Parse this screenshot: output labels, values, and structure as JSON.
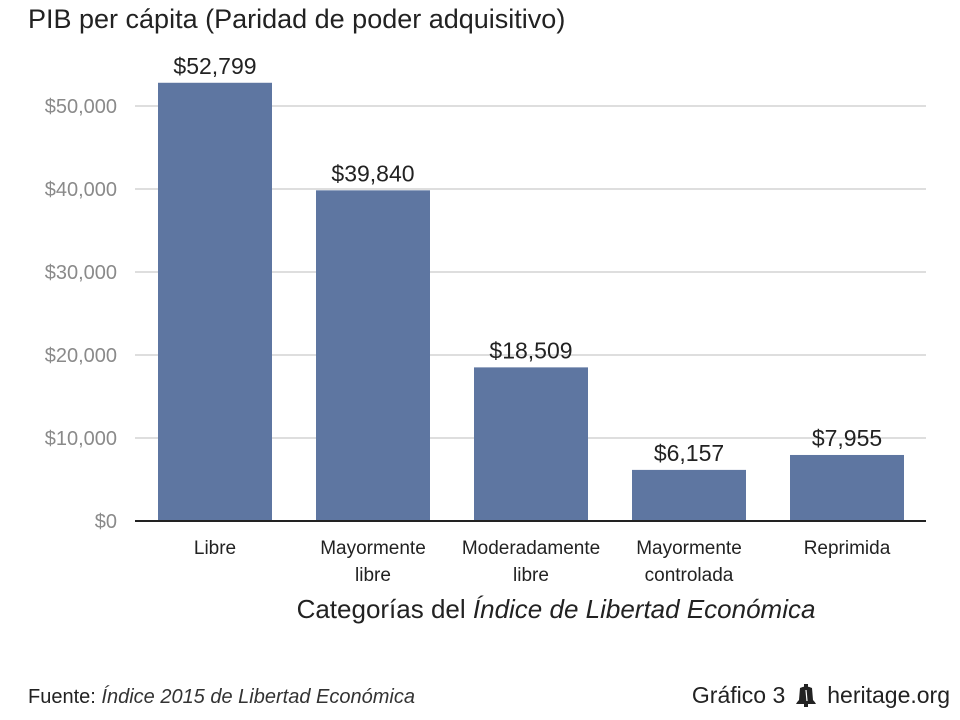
{
  "title": "PIB per cápita (Paridad de poder adquisitivo)",
  "xlabel_prefix": "Categorías del ",
  "xlabel_italic": "Índice de Libertad Económica",
  "footer": {
    "source_label": "Fuente:",
    "source_text": "Índice 2015 de Libertad Económica",
    "chart_number": "Gráfico 3",
    "icon": "liberty-bell-icon",
    "site": "heritage.org"
  },
  "colors": {
    "bar": "#5e76a1",
    "grid": "#d4d4d4",
    "tick": "#8a8a8a"
  },
  "chart_data": {
    "type": "bar",
    "title": "PIB per cápita (Paridad de poder adquisitivo)",
    "xlabel": "Categorías del Índice de Libertad Económica",
    "ylabel": "",
    "ylim": [
      0,
      55000
    ],
    "grid": true,
    "legend": "none",
    "yticks": [
      0,
      10000,
      20000,
      30000,
      40000,
      50000
    ],
    "ytick_labels": [
      "$0",
      "$10,000",
      "$20,000",
      "$30,000",
      "$40,000",
      "$50,000"
    ],
    "categories": [
      [
        "Libre"
      ],
      [
        "Mayormente",
        "libre"
      ],
      [
        "Moderadamente",
        "libre"
      ],
      [
        "Mayormente",
        "controlada"
      ],
      [
        "Reprimida"
      ]
    ],
    "values": [
      52799,
      39840,
      18509,
      6157,
      7955
    ],
    "data_labels": [
      "$52,799",
      "$39,840",
      "$18,509",
      "$6,157",
      "$7,955"
    ]
  }
}
